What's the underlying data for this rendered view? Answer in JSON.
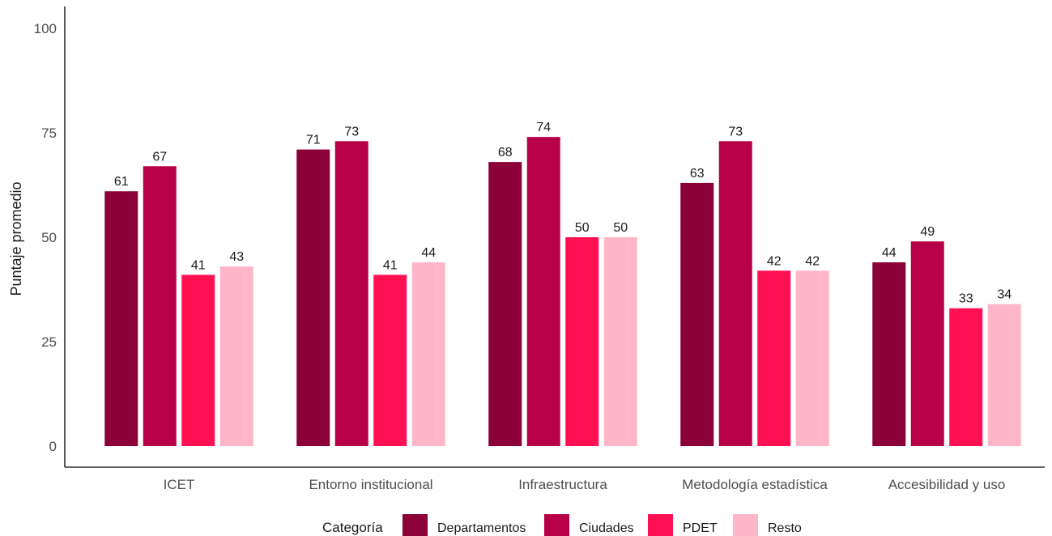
{
  "chart_data": {
    "type": "bar",
    "categories": [
      "ICET",
      "Entorno institucional",
      "Infraestructura",
      "Metodología estadística",
      "Accesibilidad y uso"
    ],
    "series": [
      {
        "name": "Departamentos",
        "values": [
          61,
          71,
          68,
          63,
          44
        ],
        "color": "#8b0036"
      },
      {
        "name": "Ciudades",
        "values": [
          67,
          73,
          74,
          73,
          49
        ],
        "color": "#b80048"
      },
      {
        "name": "PDET",
        "values": [
          41,
          41,
          50,
          42,
          33
        ],
        "color": "#ff1053"
      },
      {
        "name": "Resto",
        "values": [
          43,
          44,
          50,
          42,
          34
        ],
        "color": "#ffb6c8"
      }
    ],
    "title": "",
    "xlabel": "",
    "ylabel": "Puntaje promedio",
    "ylim": [
      0,
      100
    ],
    "yticks": [
      0,
      25,
      50,
      75,
      100
    ],
    "grid": false,
    "legend": {
      "title": "Categoría",
      "position": "bottom"
    }
  }
}
